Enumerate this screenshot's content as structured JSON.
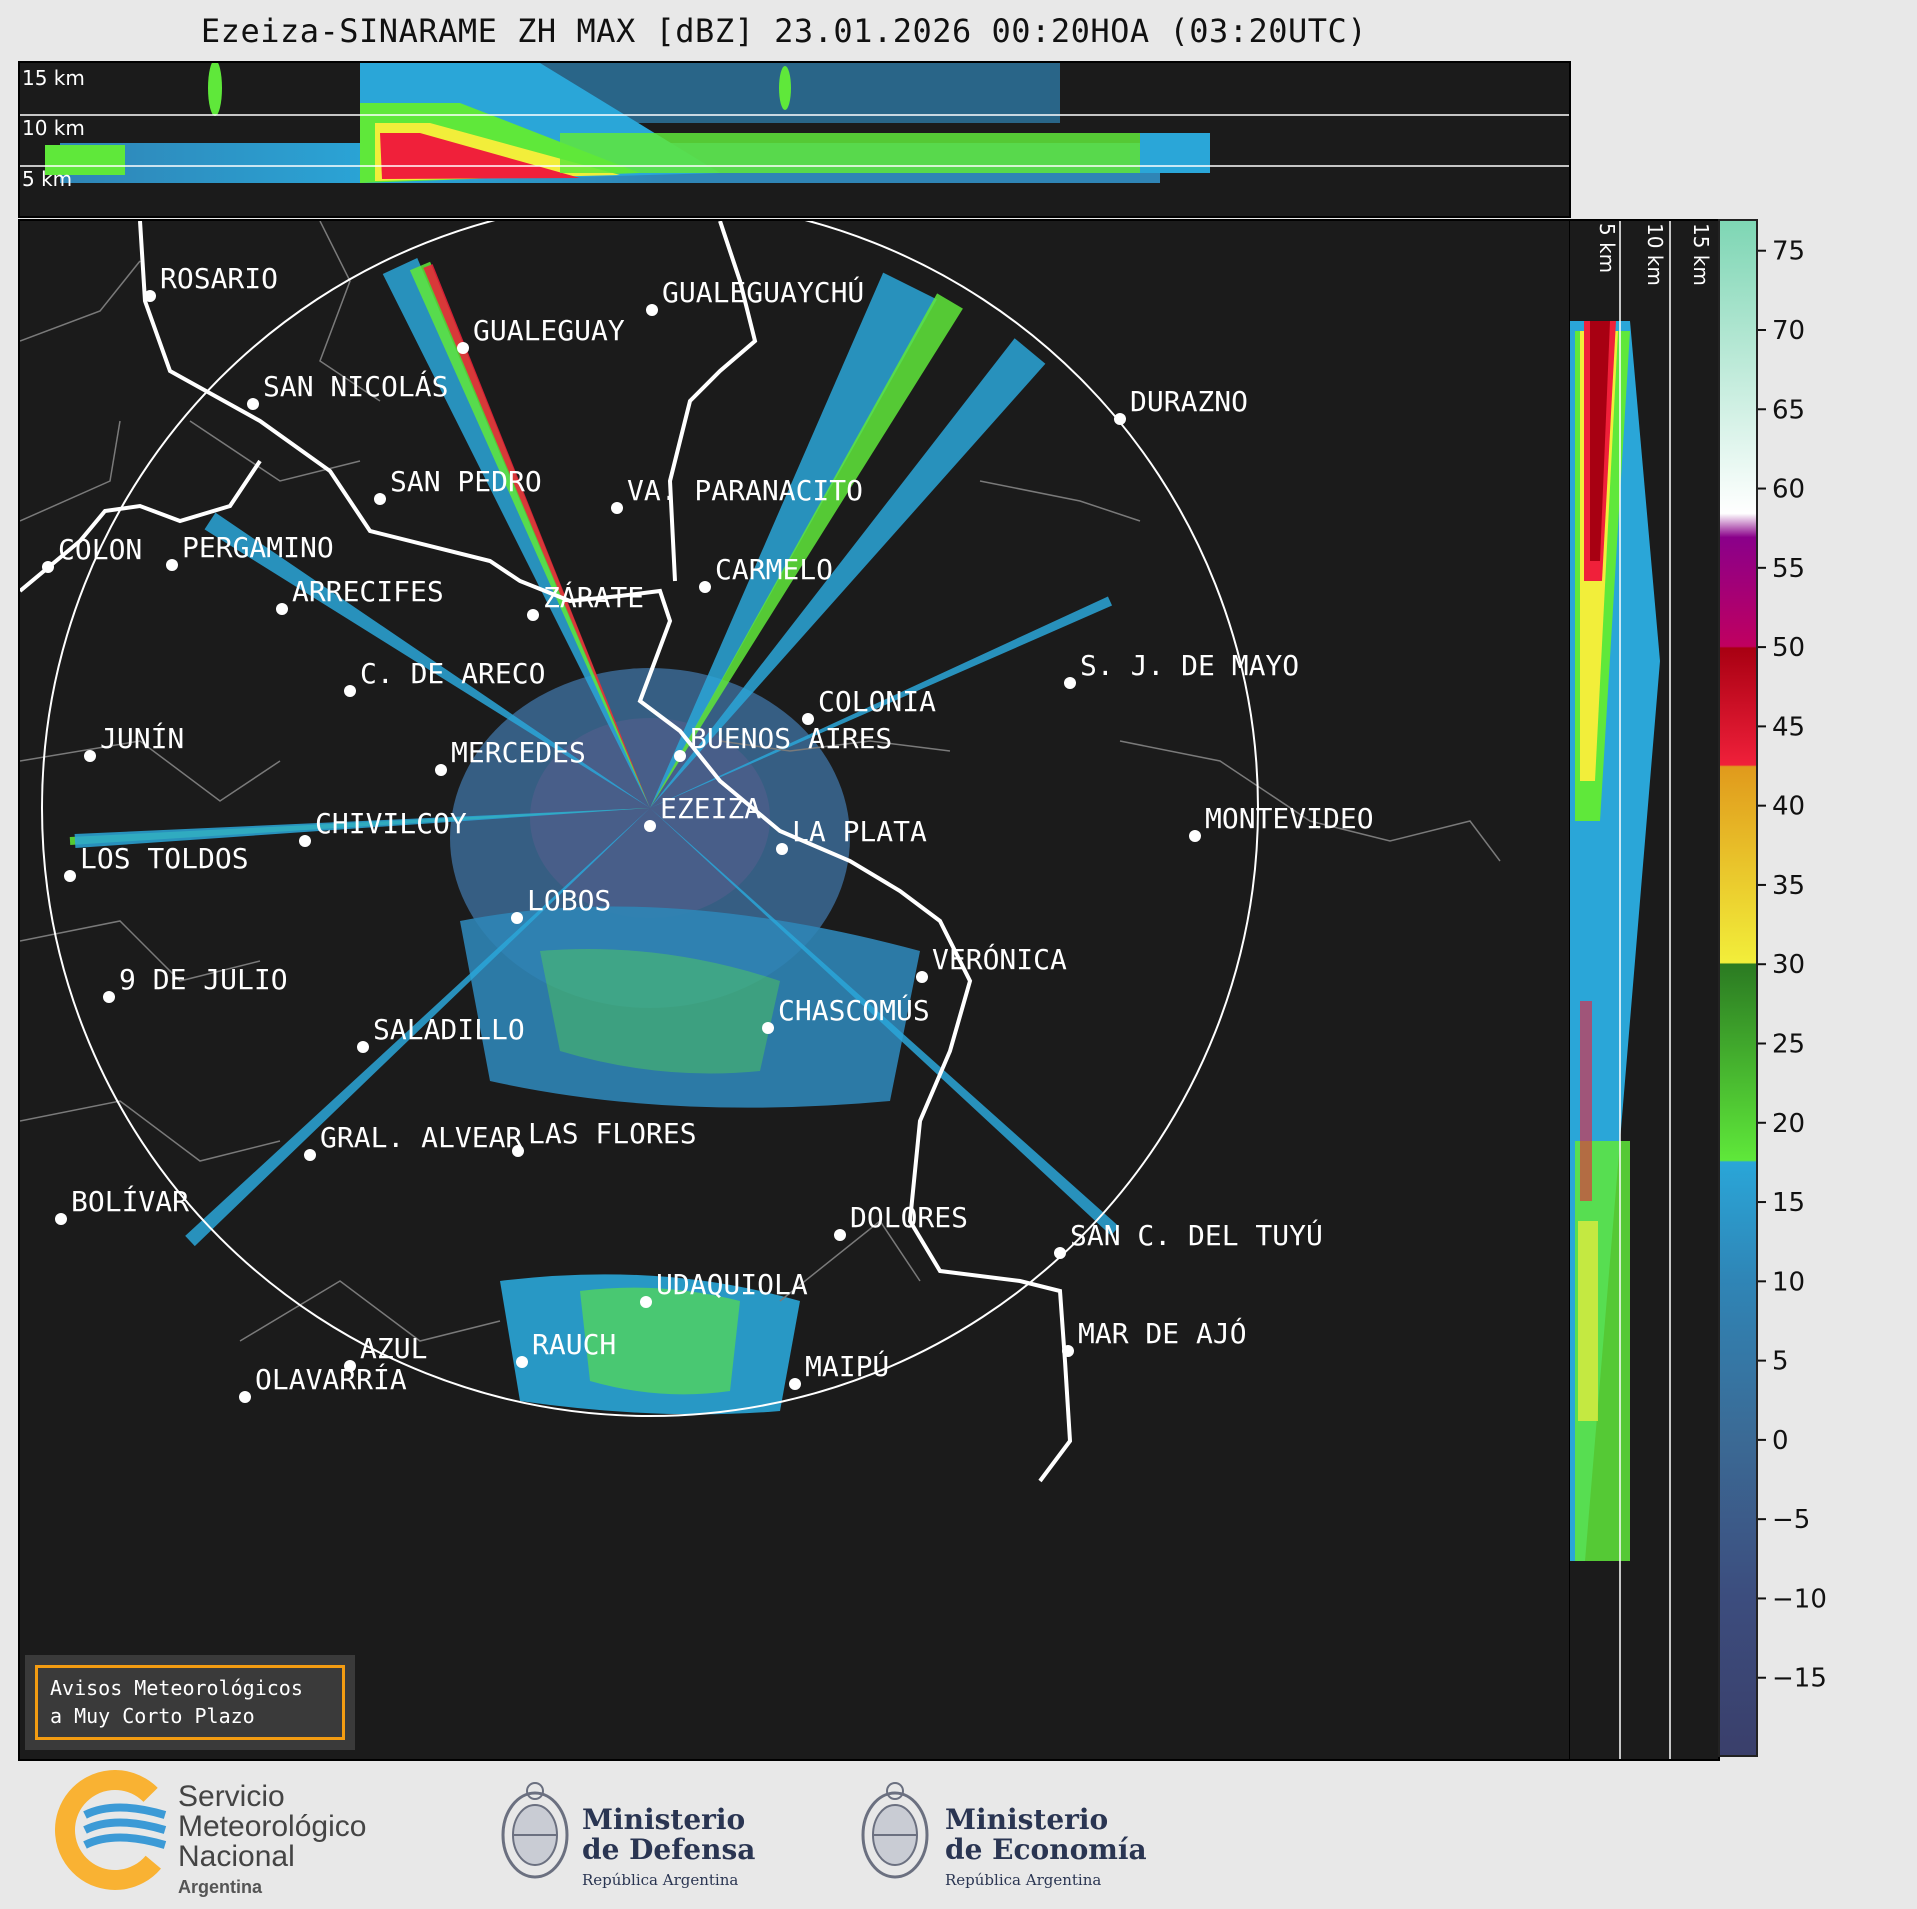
{
  "title": "Ezeiza-SINARAME ZH MAX [dBZ] 23.01.2026 00:20HOA (03:20UTC)",
  "altitude_labels": [
    "15 km",
    "10 km",
    "5 km"
  ],
  "cities": [
    {
      "name": "ROSARIO"
    },
    {
      "name": "GUALEGUAYCHÚ"
    },
    {
      "name": "GUALEGUAY"
    },
    {
      "name": "SAN NICOLÁS"
    },
    {
      "name": "DURAZNO"
    },
    {
      "name": "SAN PEDRO"
    },
    {
      "name": "VA. PARANACITO"
    },
    {
      "name": "COLON"
    },
    {
      "name": "PERGAMINO"
    },
    {
      "name": "CARMELO"
    },
    {
      "name": "ARRECIFES"
    },
    {
      "name": "ZÁRATE"
    },
    {
      "name": "S. J. DE MAYO"
    },
    {
      "name": "C. DE ARECO"
    },
    {
      "name": "COLONIA"
    },
    {
      "name": "JUNÍN"
    },
    {
      "name": "BUENOS AIRES"
    },
    {
      "name": "MERCEDES"
    },
    {
      "name": "EZEIZA"
    },
    {
      "name": "MONTEVIDEO"
    },
    {
      "name": "CHIVILCOY"
    },
    {
      "name": "LA PLATA"
    },
    {
      "name": "LOS TOLDOS"
    },
    {
      "name": "LOBOS"
    },
    {
      "name": "VERÓNICA"
    },
    {
      "name": "9 DE JULIO"
    },
    {
      "name": "CHASCOMÚS"
    },
    {
      "name": "SALADILLO"
    },
    {
      "name": "GRAL. ALVEAR"
    },
    {
      "name": "LAS FLORES"
    },
    {
      "name": "BOLÍVAR"
    },
    {
      "name": "DOLORES"
    },
    {
      "name": "SAN C. DEL TUYÚ"
    },
    {
      "name": "UDAQUIOLA"
    },
    {
      "name": "MAR DE AJÓ"
    },
    {
      "name": "AZUL"
    },
    {
      "name": "RAUCH"
    },
    {
      "name": "OLAVARRÍA"
    },
    {
      "name": "MAIPÚ"
    }
  ],
  "colorbar": {
    "min": -20,
    "max": 77,
    "ticks": [
      "75",
      "70",
      "65",
      "60",
      "55",
      "50",
      "45",
      "40",
      "35",
      "30",
      "25",
      "20",
      "15",
      "10",
      "5",
      "0",
      "−5",
      "−10",
      "−15"
    ],
    "tick_values": [
      75,
      70,
      65,
      60,
      55,
      50,
      45,
      40,
      35,
      30,
      25,
      20,
      15,
      10,
      5,
      0,
      -5,
      -10,
      -15
    ],
    "stops": [
      {
        "v": -20,
        "c": "#3a3f6b"
      },
      {
        "v": -10,
        "c": "#3c4d7e"
      },
      {
        "v": 0,
        "c": "#3b6a95"
      },
      {
        "v": 10,
        "c": "#2f85b6"
      },
      {
        "v": 17.5,
        "c": "#2aa6d8"
      },
      {
        "v": 17.6,
        "c": "#5fe83a"
      },
      {
        "v": 30,
        "c": "#2b7a22"
      },
      {
        "v": 30.1,
        "c": "#f2ee3a"
      },
      {
        "v": 42.5,
        "c": "#e09a1c"
      },
      {
        "v": 42.6,
        "c": "#f0203a"
      },
      {
        "v": 50,
        "c": "#a80012"
      },
      {
        "v": 50.1,
        "c": "#c00060"
      },
      {
        "v": 57,
        "c": "#8a008a"
      },
      {
        "v": 58.5,
        "c": "#ffffff"
      },
      {
        "v": 77,
        "c": "#7ed6b4"
      }
    ]
  },
  "notice": {
    "line1": "Avisos Meteorológicos",
    "line2": "a Muy Corto Plazo"
  },
  "footer": {
    "smn": {
      "line1": "Servicio",
      "line2": "Meteorológico",
      "line3": "Nacional",
      "line4": "Argentina"
    },
    "defensa": {
      "line1": "Ministerio",
      "line2": "de Defensa",
      "line3": "República Argentina"
    },
    "economia": {
      "line1": "Ministerio",
      "line2": "de Economía",
      "line3": "República Argentina"
    }
  },
  "colors": {
    "panel_bg": "#1b1b1b",
    "coast": "#ffffff",
    "borders": "#7a7a7a",
    "accent": "#f39c12"
  }
}
